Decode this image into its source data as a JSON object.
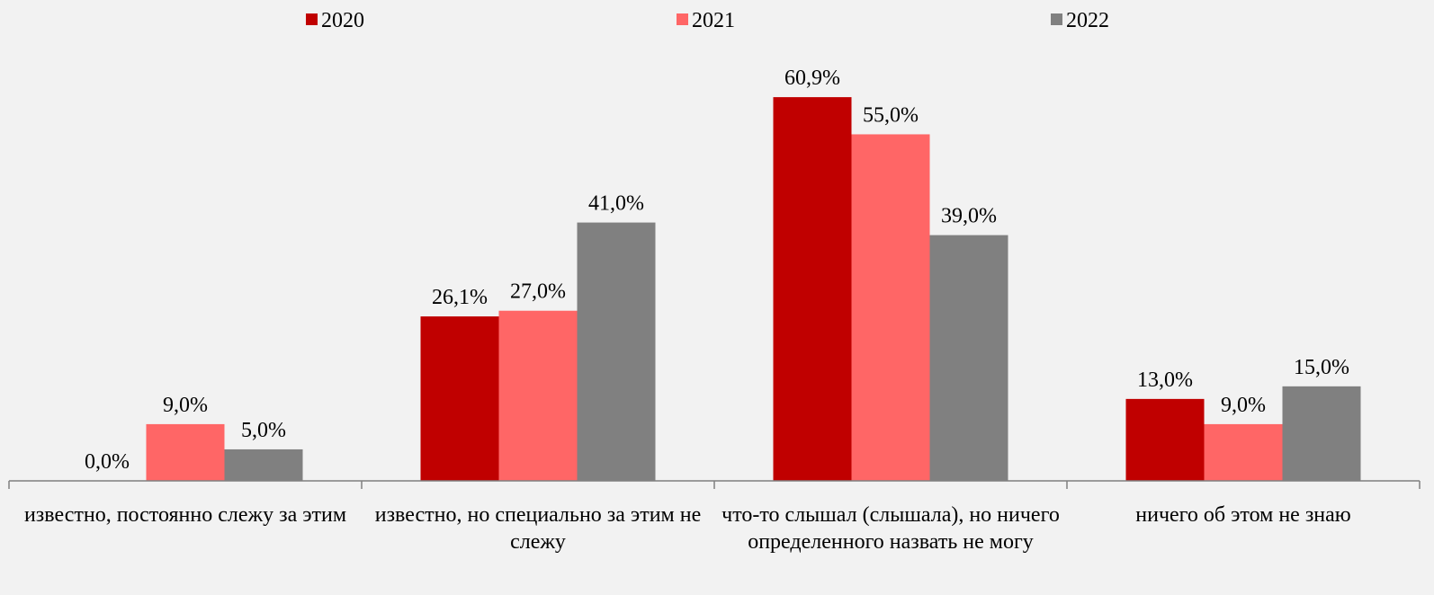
{
  "chart_data": {
    "type": "bar",
    "categories": [
      "известно, постоянно слежу за этим",
      "известно, но специально за этим не слежу",
      "что-то слышал (слышала), но ничего определенного назвать не могу",
      "ничего об этом не знаю"
    ],
    "series": [
      {
        "name": "2020",
        "color": "#c00000",
        "values": [
          0,
          26.1,
          60.9,
          13
        ],
        "value_labels": [
          "0,0%",
          "26,1%",
          "60,9%",
          "13,0%"
        ]
      },
      {
        "name": "2021",
        "color": "#ff6666",
        "values": [
          9,
          27,
          55,
          9
        ],
        "value_labels": [
          "9,0%",
          "27,0%",
          "55,0%",
          "9,0%"
        ]
      },
      {
        "name": "2022",
        "color": "#808080",
        "values": [
          5,
          41,
          39,
          15
        ],
        "value_labels": [
          "5,0%",
          "41,0%",
          "39,0%",
          "15,0%"
        ]
      }
    ],
    "legend": "top"
  }
}
